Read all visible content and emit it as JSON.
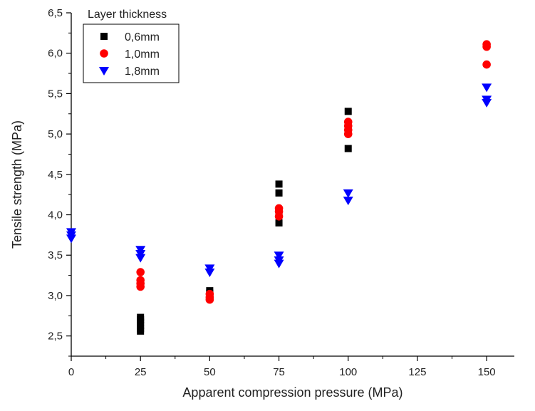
{
  "chart_data": {
    "type": "scatter",
    "title": "",
    "xlabel": "Apparent compression pressure (MPa)",
    "ylabel": "Tensile strength (MPa)",
    "xlim": [
      0,
      160
    ],
    "ylim": [
      2.25,
      6.5
    ],
    "x_ticks": [
      0,
      25,
      50,
      75,
      100,
      125,
      150
    ],
    "x_tick_labels": [
      "0",
      "25",
      "50",
      "75",
      "100",
      "125",
      "150"
    ],
    "y_ticks": [
      2.5,
      3.0,
      3.5,
      4.0,
      4.5,
      5.0,
      5.5,
      6.0,
      6.5
    ],
    "y_tick_labels": [
      "2,5",
      "3,0",
      "3,5",
      "4,0",
      "4,5",
      "5,0",
      "5,5",
      "6,0",
      "6,5"
    ],
    "grid": false,
    "legend": {
      "title": "Layer thickness",
      "placement": "top-left"
    },
    "series": [
      {
        "name": "0,6mm",
        "marker": "square",
        "color": "#000000",
        "points": [
          [
            25,
            2.73
          ],
          [
            25,
            2.7
          ],
          [
            25,
            2.67
          ],
          [
            25,
            2.63
          ],
          [
            25,
            2.59
          ],
          [
            25,
            2.56
          ],
          [
            50,
            3.06
          ],
          [
            50,
            3.03
          ],
          [
            75,
            4.38
          ],
          [
            75,
            4.27
          ],
          [
            75,
            4.03
          ],
          [
            75,
            3.9
          ],
          [
            100,
            5.28
          ],
          [
            100,
            5.02
          ],
          [
            100,
            4.82
          ]
        ]
      },
      {
        "name": "1,0mm",
        "marker": "circle",
        "color": "#ff0000",
        "points": [
          [
            25,
            3.29
          ],
          [
            25,
            3.19
          ],
          [
            25,
            3.15
          ],
          [
            25,
            3.11
          ],
          [
            50,
            3.02
          ],
          [
            50,
            2.98
          ],
          [
            50,
            2.95
          ],
          [
            75,
            4.08
          ],
          [
            75,
            4.04
          ],
          [
            75,
            3.98
          ],
          [
            100,
            5.15
          ],
          [
            100,
            5.1
          ],
          [
            100,
            5.05
          ],
          [
            100,
            5.0
          ],
          [
            150,
            6.11
          ],
          [
            150,
            6.08
          ],
          [
            150,
            5.86
          ]
        ]
      },
      {
        "name": "1,8mm",
        "marker": "triangle-down",
        "color": "#0000ff",
        "points": [
          [
            0,
            3.79
          ],
          [
            0,
            3.75
          ],
          [
            0,
            3.71
          ],
          [
            25,
            3.57
          ],
          [
            25,
            3.52
          ],
          [
            25,
            3.47
          ],
          [
            50,
            3.34
          ],
          [
            50,
            3.29
          ],
          [
            75,
            3.5
          ],
          [
            75,
            3.44
          ],
          [
            75,
            3.4
          ],
          [
            100,
            4.27
          ],
          [
            100,
            4.18
          ],
          [
            150,
            5.58
          ],
          [
            150,
            5.43
          ],
          [
            150,
            5.39
          ]
        ]
      }
    ]
  }
}
